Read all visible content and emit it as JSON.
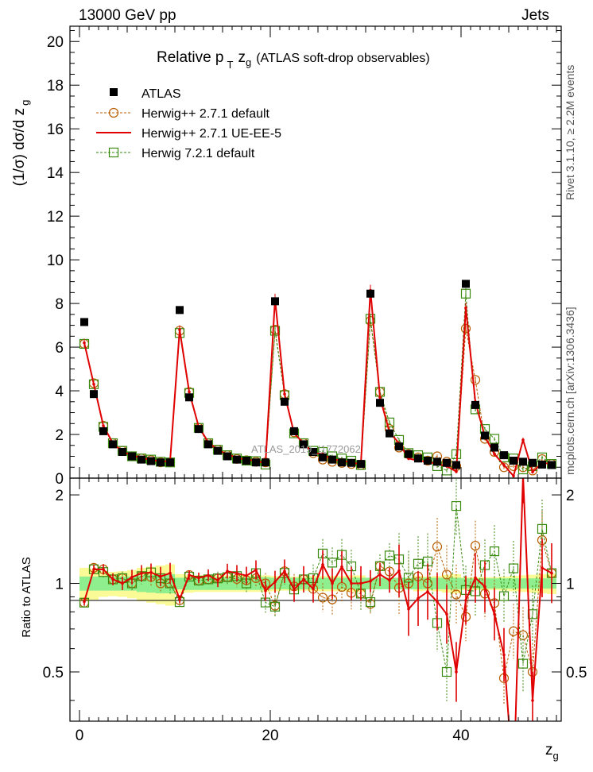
{
  "header": {
    "left": "13000 GeV pp",
    "right": "Jets"
  },
  "title": {
    "main": "Relative p",
    "sub": "T",
    "zg": "z",
    "zg_sub": "g",
    "rest": "(ATLAS soft-drop observables)"
  },
  "side_labels": {
    "rivet": "Rivet 3.1.10, ≥ 2.2M events",
    "mcplots": "mcplots.cern.ch [arXiv:1306.3436]"
  },
  "watermark": "ATLAS_2019_I1772062",
  "colors": {
    "atlas": "#000000",
    "herwig_default": "#b85c00",
    "herwig_ueee5": "#e00000",
    "herwig72": "#3a8a10",
    "band_inner": "#8fef8f",
    "band_outer": "#fafa96"
  },
  "chart_data": {
    "type": "scatter",
    "xlabel": "z",
    "xlabel_sub": "g",
    "ylabel": "(1/σ) dσ/d z",
    "ylabel_sub": "g",
    "ratio_ylabel": "Ratio to ATLAS",
    "xlim": [
      -1,
      50.5
    ],
    "ylim": [
      0,
      20.7
    ],
    "ratio_ylim": [
      0.34,
      2.28
    ],
    "x_ticks": [
      0,
      20,
      40
    ],
    "y_ticks": [
      0,
      2,
      4,
      6,
      8,
      10,
      12,
      14,
      16,
      18,
      20
    ],
    "ratio_ticks": [
      0.5,
      1,
      2
    ],
    "legend_position": "top-left",
    "x": [
      0.5,
      1.5,
      2.5,
      3.5,
      4.5,
      5.5,
      6.5,
      7.5,
      8.5,
      9.5,
      10.5,
      11.5,
      12.5,
      13.5,
      14.5,
      15.5,
      16.5,
      17.5,
      18.5,
      19.5,
      20.5,
      21.5,
      22.5,
      23.5,
      24.5,
      25.5,
      26.5,
      27.5,
      28.5,
      29.5,
      30.5,
      31.5,
      32.5,
      33.5,
      34.5,
      35.5,
      36.5,
      37.5,
      38.5,
      39.5,
      40.5,
      41.5,
      42.5,
      43.5,
      44.5,
      45.5,
      46.5,
      47.5,
      48.5,
      49.5
    ],
    "series": [
      {
        "name": "ATLAS",
        "values": [
          7.15,
          3.85,
          2.15,
          1.55,
          1.2,
          1.0,
          0.85,
          0.78,
          0.72,
          0.72,
          7.7,
          3.7,
          2.25,
          1.55,
          1.25,
          1.0,
          0.85,
          0.8,
          0.72,
          0.72,
          8.1,
          3.5,
          2.15,
          1.55,
          1.2,
          0.95,
          0.85,
          0.72,
          0.7,
          0.65,
          8.45,
          3.45,
          2.05,
          1.45,
          1.1,
          0.9,
          0.8,
          0.75,
          0.7,
          0.6,
          8.9,
          3.35,
          1.95,
          1.4,
          1.05,
          0.8,
          0.75,
          0.7,
          0.62,
          0.6
        ],
        "ratio_band_inner": [
          0.055,
          0.055,
          0.055,
          0.055,
          0.055,
          0.055,
          0.065,
          0.07,
          0.075,
          0.075,
          0.045,
          0.05,
          0.05,
          0.05,
          0.05,
          0.05,
          0.05,
          0.05,
          0.05,
          0.05,
          0.045,
          0.045,
          0.045,
          0.045,
          0.045,
          0.045,
          0.045,
          0.045,
          0.045,
          0.045,
          0.045,
          0.045,
          0.045,
          0.045,
          0.045,
          0.045,
          0.045,
          0.045,
          0.045,
          0.045,
          0.04,
          0.04,
          0.04,
          0.04,
          0.04,
          0.04,
          0.04,
          0.04,
          0.04,
          0.04
        ],
        "ratio_band_outer": [
          0.13,
          0.12,
          0.1,
          0.095,
          0.1,
          0.11,
          0.13,
          0.14,
          0.15,
          0.16,
          0.075,
          0.07,
          0.065,
          0.065,
          0.065,
          0.065,
          0.065,
          0.065,
          0.065,
          0.065,
          0.06,
          0.055,
          0.055,
          0.055,
          0.06,
          0.06,
          0.06,
          0.06,
          0.065,
          0.065,
          0.045,
          0.045,
          0.045,
          0.045,
          0.045,
          0.06,
          0.055,
          0.06,
          0.07,
          0.075,
          0.05,
          0.05,
          0.05,
          0.05,
          0.055,
          0.06,
          0.065,
          0.07,
          0.075,
          0.08
        ]
      },
      {
        "name": "Herwig++ 2.7.1 default",
        "values": [
          6.15,
          4.35,
          2.4,
          1.6,
          1.25,
          1.0,
          0.9,
          0.82,
          0.72,
          0.72,
          6.75,
          3.95,
          2.3,
          1.6,
          1.3,
          1.05,
          0.88,
          0.82,
          0.75,
          0.72,
          6.8,
          3.85,
          2.1,
          1.6,
          1.15,
          0.85,
          0.75,
          0.7,
          0.65,
          0.6,
          7.2,
          3.95,
          2.25,
          1.4,
          1.1,
          0.95,
          0.8,
          1.0,
          0.75,
          0.55,
          6.85,
          4.5,
          1.8,
          1.2,
          0.5,
          0.55,
          0.5,
          0.35,
          0.87,
          0.65
        ]
      },
      {
        "name": "Herwig++ 2.7.1 UE-EE-5",
        "values": [
          6.2,
          4.3,
          2.4,
          1.6,
          1.2,
          1.05,
          0.92,
          0.85,
          0.76,
          0.78,
          6.8,
          3.95,
          2.35,
          1.65,
          1.28,
          1.1,
          0.92,
          0.85,
          0.8,
          0.68,
          8.2,
          3.85,
          2.05,
          1.6,
          1.15,
          1.1,
          0.85,
          0.82,
          0.7,
          0.65,
          8.6,
          3.7,
          2.1,
          1.6,
          0.9,
          0.8,
          0.75,
          0.65,
          0.55,
          0.3,
          7.8,
          3.5,
          1.9,
          1.1,
          0.6,
          0.1,
          1.75,
          0.28,
          0.7,
          0.65
        ]
      },
      {
        "name": "Herwig 7.2.1 default",
        "values": [
          6.15,
          4.3,
          2.35,
          1.6,
          1.25,
          1.0,
          0.9,
          0.85,
          0.75,
          0.72,
          6.65,
          3.9,
          2.3,
          1.6,
          1.3,
          1.05,
          0.9,
          0.8,
          0.78,
          0.62,
          6.75,
          3.8,
          2.05,
          1.6,
          1.25,
          1.2,
          1.0,
          0.9,
          0.8,
          0.6,
          7.3,
          3.95,
          2.55,
          1.75,
          1.15,
          1.05,
          0.95,
          0.55,
          0.35,
          1.1,
          8.45,
          3.15,
          2.25,
          1.8,
          0.95,
          0.9,
          0.4,
          0.55,
          0.95,
          0.65
        ]
      }
    ]
  }
}
